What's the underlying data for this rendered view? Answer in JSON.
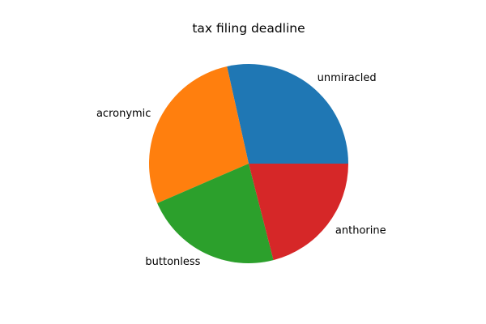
{
  "chart_data": {
    "type": "pie",
    "title": "tax filing deadline",
    "slices": [
      {
        "label": "unmiracled",
        "value": 28.5,
        "color": "#1f77b4"
      },
      {
        "label": "acronymic",
        "value": 28.0,
        "color": "#ff7f0e"
      },
      {
        "label": "buttonless",
        "value": 22.5,
        "color": "#2ca02c"
      },
      {
        "label": "anthorine",
        "value": 21.0,
        "color": "#d62728"
      }
    ],
    "start_angle_deg": 0,
    "direction": "counterclockwise",
    "legend": "none",
    "labels_outside": true
  }
}
